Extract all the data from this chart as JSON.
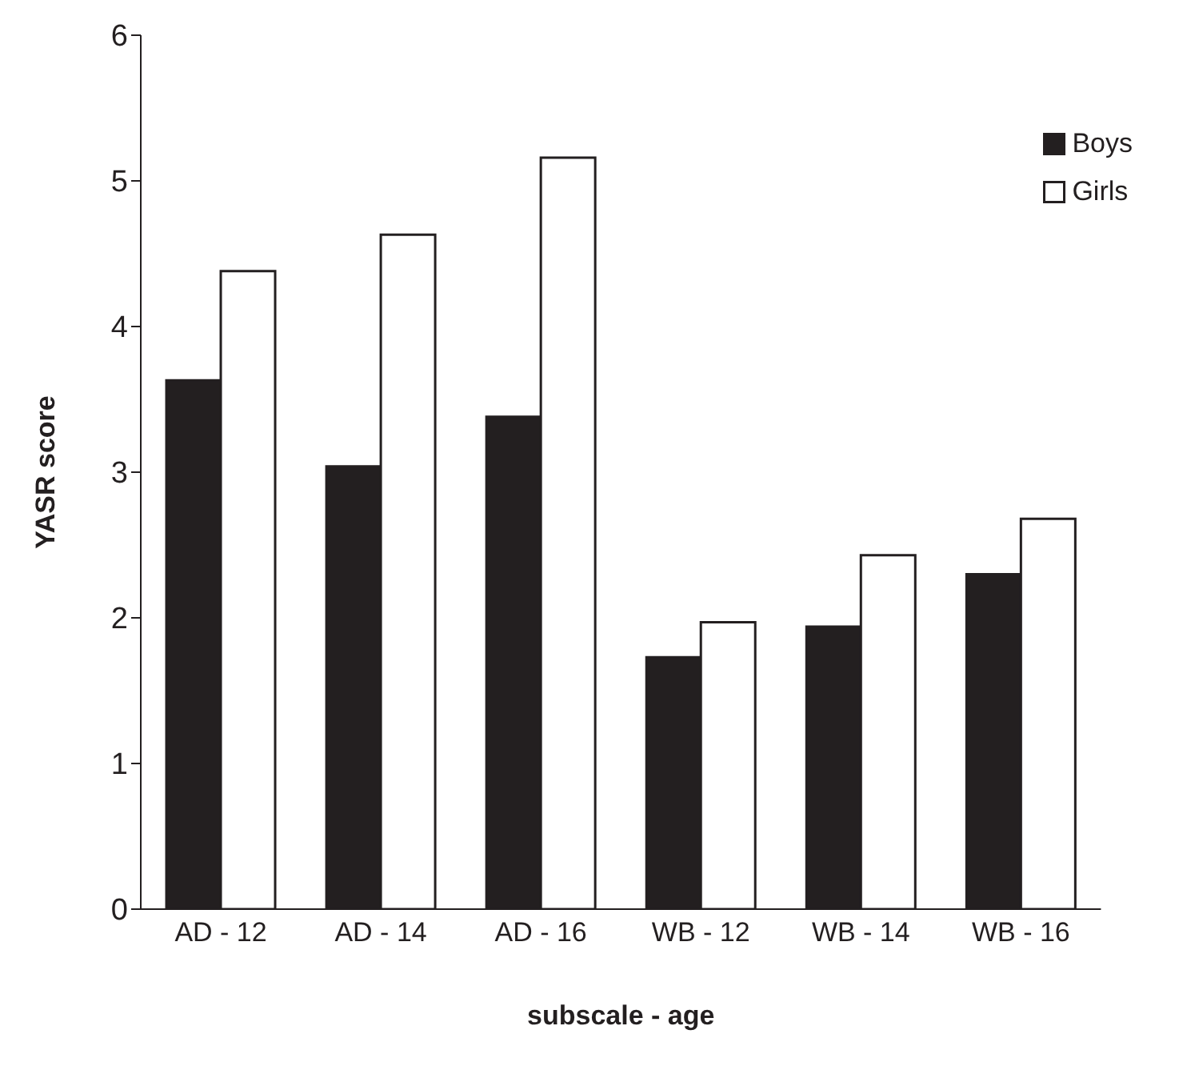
{
  "chart_data": {
    "type": "bar",
    "xlabel": "subscale - age",
    "ylabel": "YASR score",
    "categories": [
      "AD - 12",
      "AD - 14",
      "AD - 16",
      "WB - 12",
      "WB - 14",
      "WB - 16"
    ],
    "series": [
      {
        "name": "Boys",
        "color": "#231f20",
        "values": [
          3.63,
          3.04,
          3.38,
          1.73,
          1.94,
          2.3
        ]
      },
      {
        "name": "Girls",
        "color": "#ffffff",
        "values": [
          4.38,
          4.63,
          5.16,
          1.97,
          2.43,
          2.68
        ]
      }
    ],
    "ylim": [
      0,
      6
    ],
    "yticks": [
      0,
      1,
      2,
      3,
      4,
      5,
      6
    ],
    "grid": false,
    "legend": "top right"
  }
}
